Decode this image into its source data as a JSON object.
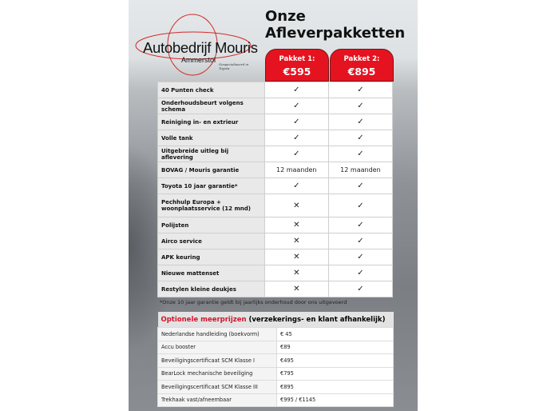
{
  "logo": {
    "name": "Autobedrijf Mouris",
    "location": "Ammerstol",
    "tagline": "Gespecialiseerd in Toyota"
  },
  "title": [
    "Onze",
    "Afleverpakketten"
  ],
  "packages": [
    {
      "label": "Pakket 1:",
      "price": "€595"
    },
    {
      "label": "Pakket 2:",
      "price": "€895"
    }
  ],
  "rows": [
    {
      "label": "40 Punten check",
      "p1": "✓",
      "p2": "✓"
    },
    {
      "label": "Onderhoudsbeurt volgens schema",
      "p1": "✓",
      "p2": "✓"
    },
    {
      "label": "Reiniging in- en extrieur",
      "p1": "✓",
      "p2": "✓"
    },
    {
      "label": "Volle tank",
      "p1": "✓",
      "p2": "✓"
    },
    {
      "label": "Uitgebreide uitleg bij aflevering",
      "p1": "✓",
      "p2": "✓"
    },
    {
      "label": "BOVAG / Mouris garantie",
      "p1": "12 maanden",
      "p2": "12 maanden"
    },
    {
      "label": "Toyota 10 jaar garantie*",
      "p1": "✓",
      "p2": "✓"
    },
    {
      "label": "Pechhulp Europa + woonplaatsservice (12 mnd)",
      "p1": "✕",
      "p2": "✓"
    },
    {
      "label": "Polijsten",
      "p1": "✕",
      "p2": "✓"
    },
    {
      "label": "Airco service",
      "p1": "✕",
      "p2": "✓"
    },
    {
      "label": "APK keuring",
      "p1": "✕",
      "p2": "✓"
    },
    {
      "label": "Nieuwe mattenset",
      "p1": "✕",
      "p2": "✓"
    },
    {
      "label": "Restylen kleine deukjes",
      "p1": "✕",
      "p2": "✓"
    }
  ],
  "footnote": "*Onze 10 jaar garantie geldt bij jaarlijks onderhoud door ons uitgevoerd",
  "optional": {
    "title_red": "Optionele meerprijzen",
    "title_rest": " (verzekerings- en klant afhankelijk)",
    "items": [
      {
        "label": "Nederlandse handleiding (boekvorm)",
        "price": "€ 45"
      },
      {
        "label": "Accu booster",
        "price": "€89"
      },
      {
        "label": "Beveiligingscertificaat SCM Klasse I",
        "price": "€495"
      },
      {
        "label": "BearLock mechanische beveiliging",
        "price": "€795"
      },
      {
        "label": "Beveiligingscertificaat SCM Klasse III",
        "price": "€895"
      },
      {
        "label": "Trekhaak vast/afneembaar",
        "price": "€995 / €1145"
      }
    ]
  },
  "colors": {
    "accent": "#e5121f"
  }
}
